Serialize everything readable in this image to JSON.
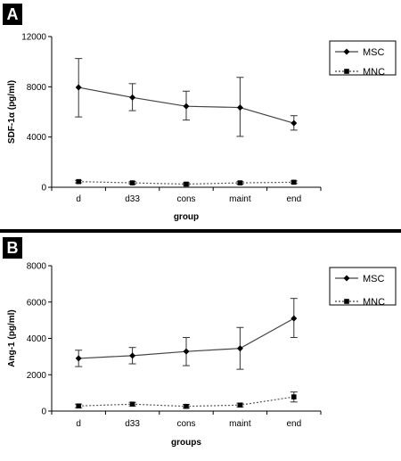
{
  "chart_data": [
    {
      "panel": "A",
      "type": "line",
      "categories": [
        "d",
        "d33",
        "cons",
        "maint",
        "end"
      ],
      "xlabel": "group",
      "ylabel": "SDF-1α (pg/ml)",
      "ylim": [
        0,
        12000
      ],
      "yticks": [
        "0",
        "4000",
        "8000",
        "12000"
      ],
      "legend_position": "top-right",
      "grid": false,
      "series": [
        {
          "name": "MSC",
          "style": "solid",
          "marker": "diamond",
          "values": [
            7950,
            7150,
            6450,
            6350,
            5100
          ],
          "err_low": [
            5600,
            6100,
            5350,
            4050,
            4550
          ],
          "err_high": [
            10250,
            8250,
            7650,
            8750,
            5700
          ]
        },
        {
          "name": "MNC",
          "style": "dotted",
          "marker": "square",
          "values": [
            450,
            350,
            250,
            350,
            400
          ],
          "err_low": [
            350,
            250,
            150,
            250,
            300
          ],
          "err_high": [
            550,
            450,
            350,
            450,
            500
          ]
        }
      ]
    },
    {
      "panel": "B",
      "type": "line",
      "categories": [
        "d",
        "d33",
        "cons",
        "maint",
        "end"
      ],
      "xlabel": "groups",
      "ylabel": "Ang-1 (pg/ml)",
      "ylim": [
        0,
        8000
      ],
      "yticks": [
        "0",
        "2000",
        "4000",
        "6000",
        "8000"
      ],
      "legend_position": "top-right",
      "grid": false,
      "series": [
        {
          "name": "MSC",
          "style": "solid",
          "marker": "diamond",
          "values": [
            2900,
            3050,
            3280,
            3450,
            5100
          ],
          "err_low": [
            2450,
            2600,
            2500,
            2300,
            4050
          ],
          "err_high": [
            3350,
            3500,
            4050,
            4600,
            6200
          ]
        },
        {
          "name": "MNC",
          "style": "dotted",
          "marker": "square",
          "values": [
            280,
            380,
            260,
            330,
            780
          ],
          "err_low": [
            180,
            280,
            170,
            230,
            500
          ],
          "err_high": [
            380,
            480,
            360,
            430,
            1050
          ]
        }
      ]
    }
  ]
}
